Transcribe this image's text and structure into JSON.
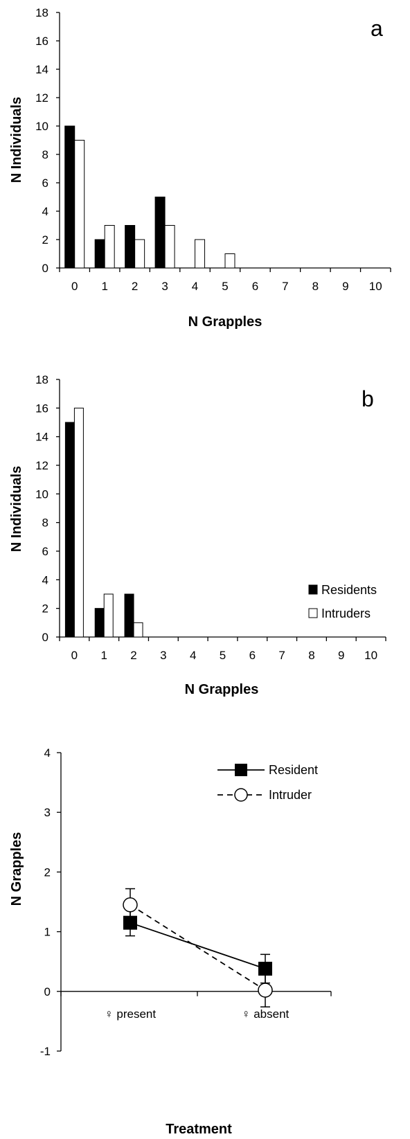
{
  "chart_data": [
    {
      "type": "bar",
      "panel_label": "a",
      "categories": [
        "0",
        "1",
        "2",
        "3",
        "4",
        "5",
        "6",
        "7",
        "8",
        "9",
        "10"
      ],
      "series": [
        {
          "values": [
            10,
            2,
            3,
            5,
            0,
            0,
            0,
            0,
            0,
            0,
            0
          ],
          "color": "#000000"
        },
        {
          "values": [
            9,
            3,
            2,
            3,
            2,
            1,
            0,
            0,
            0,
            0,
            0
          ],
          "color": "#ffffff"
        }
      ],
      "xlabel": "N Grapples",
      "ylabel": "N Individuals",
      "ylim": [
        0,
        18
      ],
      "yticks": [
        "0",
        "2",
        "4",
        "6",
        "8",
        "10",
        "12",
        "14",
        "16",
        "18"
      ],
      "grid": false,
      "legend": "none"
    },
    {
      "type": "bar",
      "panel_label": "b",
      "categories": [
        "0",
        "1",
        "2",
        "3",
        "4",
        "5",
        "6",
        "7",
        "8",
        "9",
        "10"
      ],
      "series": [
        {
          "name": "Residents",
          "values": [
            15,
            2,
            3,
            0,
            0,
            0,
            0,
            0,
            0,
            0,
            0
          ],
          "color": "#000000"
        },
        {
          "name": "Intruders",
          "values": [
            16,
            3,
            1,
            0,
            0,
            0,
            0,
            0,
            0,
            0,
            0
          ],
          "color": "#ffffff"
        }
      ],
      "xlabel": "N Grapples",
      "ylabel": "N Individuals",
      "ylim": [
        0,
        18
      ],
      "yticks": [
        "0",
        "2",
        "4",
        "6",
        "8",
        "10",
        "12",
        "14",
        "16",
        "18"
      ],
      "grid": false,
      "legend": "right"
    },
    {
      "type": "line",
      "categories": [
        "♀ present",
        "♀ absent"
      ],
      "series": [
        {
          "name": "Resident",
          "values": [
            1.15,
            0.38
          ],
          "error": [
            0.22,
            0.24
          ],
          "marker": "square",
          "line": "solid"
        },
        {
          "name": "Intruder",
          "values": [
            1.45,
            0.02
          ],
          "error": [
            0.27,
            0.28
          ],
          "marker": "circle",
          "line": "dashed"
        }
      ],
      "xlabel": "Treatment",
      "ylabel": "N Grapples",
      "ylim": [
        -1,
        4
      ],
      "yticks": [
        "-1",
        "0",
        "1",
        "2",
        "3",
        "4"
      ],
      "grid": false,
      "legend": "top-right"
    }
  ]
}
